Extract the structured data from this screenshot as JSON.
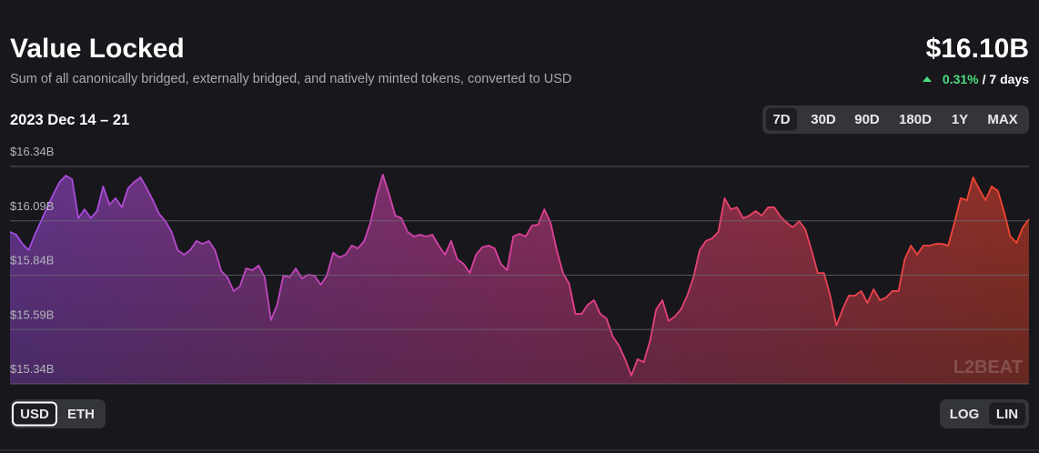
{
  "chart_data": {
    "type": "area",
    "title": "Value Locked",
    "subtitle": "Sum of all canonically bridged, externally bridged, and natively minted tokens, converted to USD",
    "current_value": "$16.10B",
    "change": "0.31%",
    "change_period": "/ 7 days",
    "date_range": "2023 Dec 14 – 21",
    "range_options": [
      "7D",
      "30D",
      "90D",
      "180D",
      "1Y",
      "MAX"
    ],
    "unit_options": [
      "USD",
      "ETH"
    ],
    "scale_options": [
      "LOG",
      "LIN"
    ],
    "watermark": "L2BEAT",
    "colors": [
      "#a04de6",
      "#e0409a",
      "#f2452a"
    ],
    "grid": true,
    "ylim": [
      15.34,
      16.34
    ],
    "yticks": [
      {
        "value": 15.34,
        "label": "$15.34B"
      },
      {
        "value": 15.59,
        "label": "$15.59B"
      },
      {
        "value": 15.84,
        "label": "$15.84B"
      },
      {
        "value": 16.09,
        "label": "$16.09B"
      },
      {
        "value": 16.34,
        "label": "$16.34B"
      }
    ],
    "values": [
      16.039,
      16.026,
      15.984,
      15.955,
      16.026,
      16.089,
      16.152,
      16.214,
      16.269,
      16.298,
      16.281,
      16.102,
      16.143,
      16.102,
      16.135,
      16.248,
      16.164,
      16.194,
      16.152,
      16.24,
      16.269,
      16.29,
      16.24,
      16.185,
      16.122,
      16.089,
      16.039,
      15.955,
      15.934,
      15.955,
      15.997,
      15.984,
      15.997,
      15.955,
      15.859,
      15.83,
      15.767,
      15.788,
      15.871,
      15.863,
      15.884,
      15.83,
      15.633,
      15.704,
      15.838,
      15.83,
      15.871,
      15.825,
      15.842,
      15.838,
      15.796,
      15.838,
      15.943,
      15.922,
      15.934,
      15.976,
      15.963,
      15.997,
      16.081,
      16.206,
      16.302,
      16.214,
      16.114,
      16.102,
      16.039,
      16.018,
      16.026,
      16.018,
      16.026,
      15.976,
      15.934,
      15.997,
      15.913,
      15.892,
      15.85,
      15.934,
      15.968,
      15.976,
      15.963,
      15.892,
      15.863,
      16.018,
      16.03,
      16.018,
      16.068,
      16.072,
      16.143,
      16.081,
      15.955,
      15.85,
      15.8,
      15.662,
      15.662,
      15.704,
      15.725,
      15.662,
      15.641,
      15.558,
      15.516,
      15.453,
      15.378,
      15.453,
      15.44,
      15.537,
      15.683,
      15.725,
      15.629,
      15.65,
      15.683,
      15.746,
      15.83,
      15.955,
      15.997,
      16.009,
      16.039,
      16.194,
      16.143,
      16.152,
      16.102,
      16.114,
      16.135,
      16.114,
      16.152,
      16.152,
      16.11,
      16.081,
      16.06,
      16.089,
      16.051,
      15.955,
      15.85,
      15.85,
      15.746,
      15.608,
      15.683,
      15.746,
      15.746,
      15.767,
      15.712,
      15.775,
      15.725,
      15.737,
      15.767,
      15.767,
      15.913,
      15.976,
      15.934,
      15.976,
      15.976,
      15.984,
      15.984,
      15.976,
      16.081,
      16.194,
      16.185,
      16.29,
      16.235,
      16.185,
      16.248,
      16.227,
      16.131,
      16.018,
      15.989,
      16.06,
      16.097
    ]
  }
}
